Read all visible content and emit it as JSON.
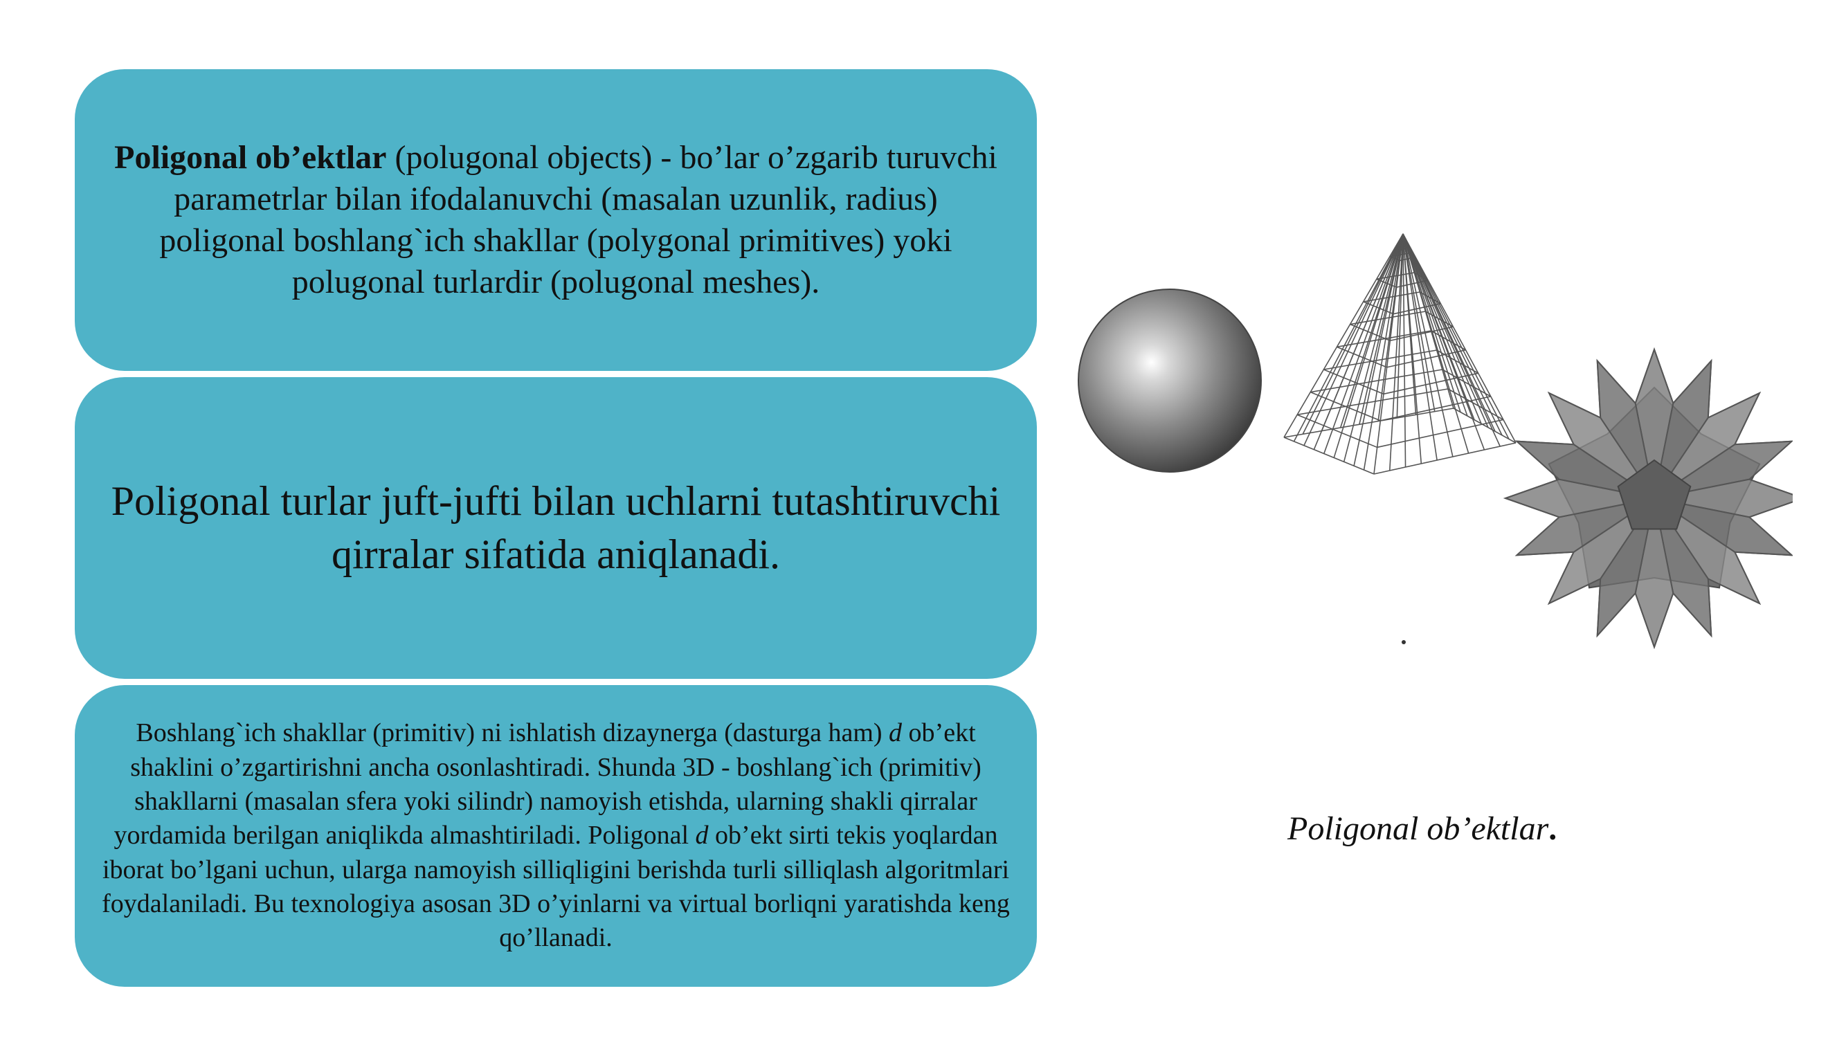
{
  "box1": {
    "bold_lead": "Poligonal ob’ektlar",
    "rest": " (polugonal objects) - bo’lar o’zgarib turuvchi parametrlar bilan ifodalanuvchi (masalan uzunlik, radius) poligonal boshlang`ich shakllar (polygonal primitives) yoki polugonal turlardir (polugonal meshes)."
  },
  "box2": {
    "text": "Poligonal turlar juft-jufti bilan uchlarni tutashtiruvchi qirralar sifatida aniqlanadi."
  },
  "box3": {
    "part1": "Boshlang`ich shakllar (primitiv) ni ishlatish dizaynerga (dasturga ham) ",
    "italic_d1": "d",
    "part2": " ob’ekt shaklini o’zgartirishni ancha osonlashtiradi. Shunda 3D - boshlang`ich (primitiv) shakllarni (masalan sfera yoki silindr) namoyish etishda, ularning shakli qirralar yordamida berilgan aniqlikda almashtiriladi. Poligonal ",
    "italic_d2": "d",
    "part3": " ob’ekt sirti tekis yoqlardan iborat bo’lgani uchun, ularga namoyish silliqligini berishda turli silliqlash algoritmlari foydalaniladi. Bu texnologiya asosan 3D o’yinlarni va virtual borliqni yaratishda keng qo’llanadi."
  },
  "caption": {
    "text": "Poligonal ob’ektlar",
    "dot": "."
  },
  "colors": {
    "box_fill": "#4fb3c8",
    "text": "#111111"
  }
}
